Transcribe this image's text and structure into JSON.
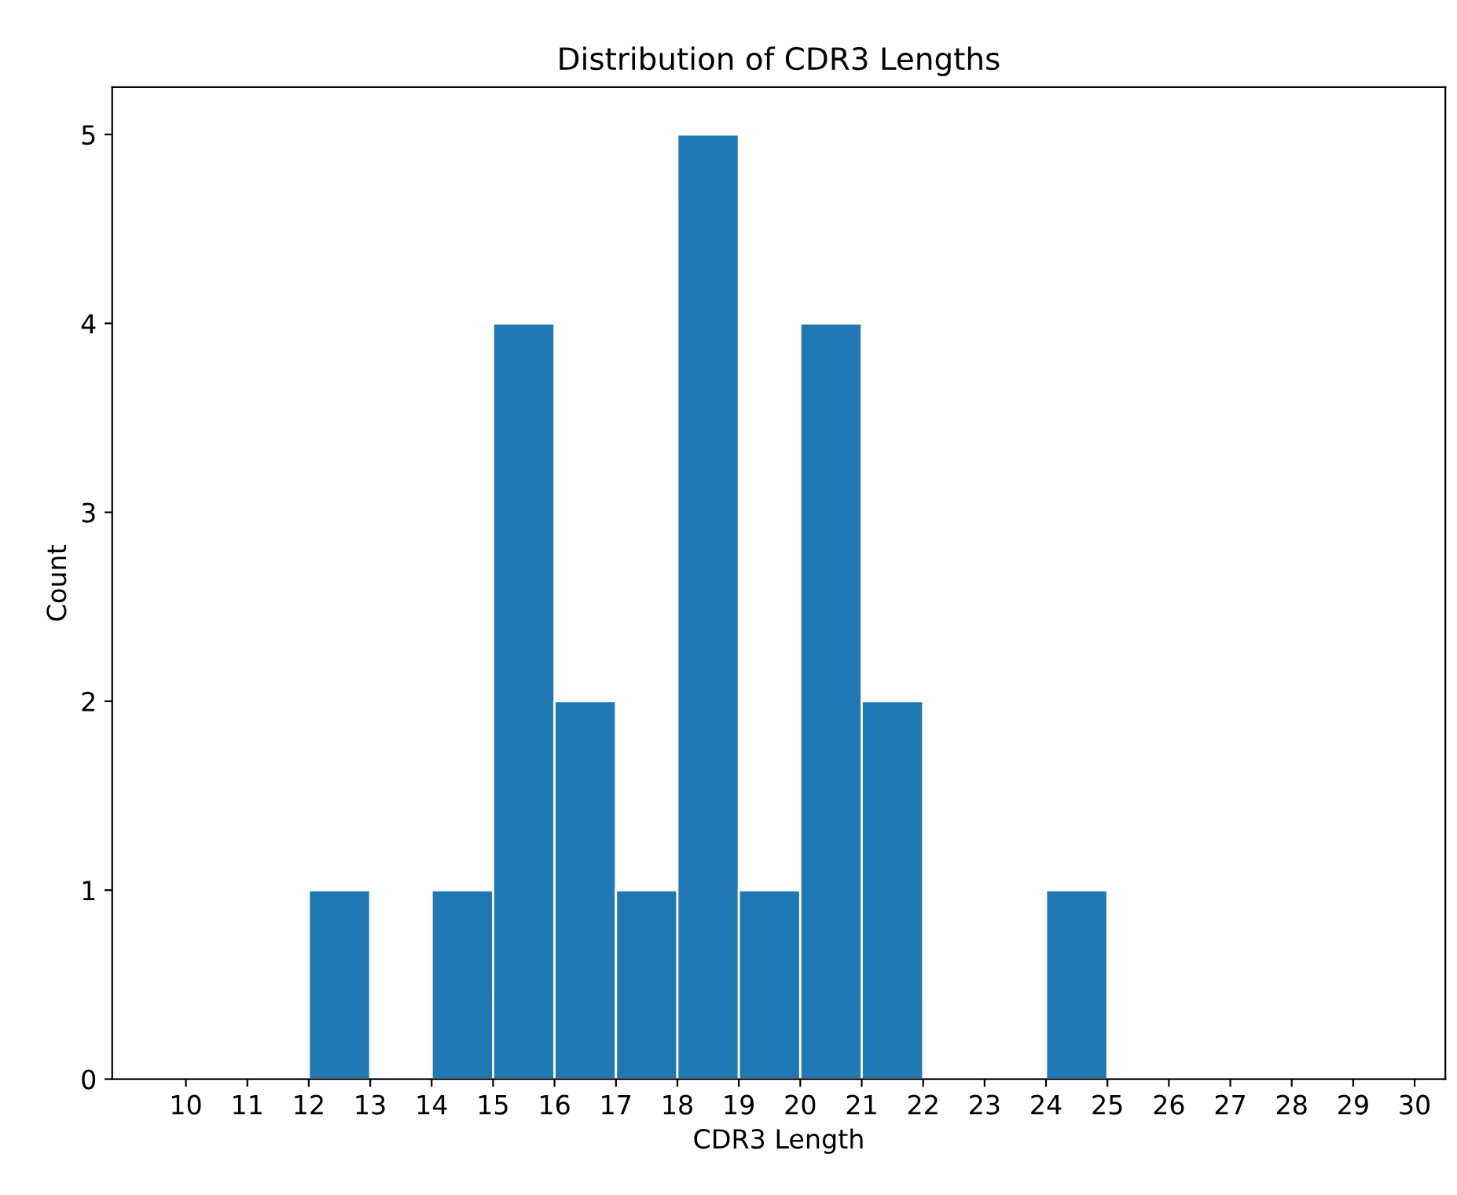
{
  "chart_data": {
    "type": "histogram",
    "title": "Distribution of CDR3 Lengths",
    "xlabel": "CDR3 Length",
    "ylabel": "Count",
    "bins": [
      10,
      11,
      12,
      13,
      14,
      15,
      16,
      17,
      18,
      19,
      20,
      21,
      22,
      23,
      24,
      25,
      26,
      27,
      28,
      29,
      30
    ],
    "values": [
      0,
      0,
      1,
      0,
      1,
      4,
      2,
      1,
      5,
      1,
      4,
      2,
      0,
      0,
      1,
      0,
      0,
      0,
      0,
      0
    ],
    "color": "#1f77b4",
    "xlim": [
      8.8,
      30.5
    ],
    "ylim": [
      0,
      5.25
    ],
    "xticks": [
      10,
      11,
      12,
      13,
      14,
      15,
      16,
      17,
      18,
      19,
      20,
      21,
      22,
      23,
      24,
      25,
      26,
      27,
      28,
      29,
      30
    ],
    "yticks": [
      0,
      1,
      2,
      3,
      4,
      5
    ],
    "grid": false
  }
}
